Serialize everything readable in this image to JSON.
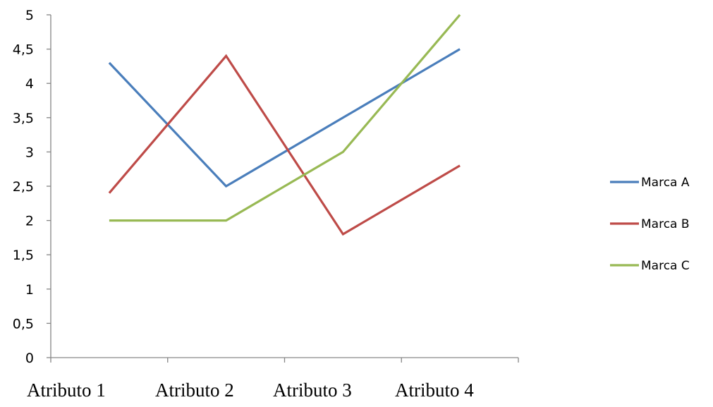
{
  "chart_data": {
    "type": "line",
    "categories": [
      "Atributo 1",
      "Atributo 2",
      "Atributo 3",
      "Atributo 4"
    ],
    "series": [
      {
        "name": "Marca A",
        "color": "#4a7ebb",
        "values": [
          4.3,
          2.5,
          3.5,
          4.5
        ]
      },
      {
        "name": "Marca B",
        "color": "#be4b48",
        "values": [
          2.4,
          4.4,
          1.8,
          2.8
        ]
      },
      {
        "name": "Marca C",
        "color": "#98b954",
        "values": [
          2.0,
          2.0,
          3.0,
          5.0
        ]
      }
    ],
    "ylim": [
      0,
      5
    ],
    "yticks": [
      "0",
      "0,5",
      "1",
      "1,5",
      "2",
      "2,5",
      "3",
      "3,5",
      "4",
      "4,5",
      "5"
    ],
    "grid": false,
    "legend": "right"
  }
}
